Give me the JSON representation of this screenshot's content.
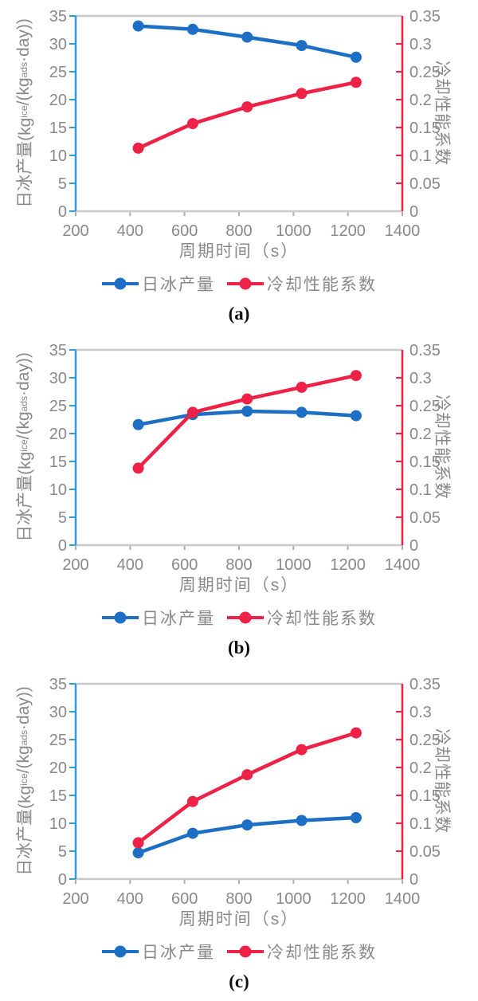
{
  "colors": {
    "series_blue": "#1c6fc4",
    "series_red": "#ee2147",
    "axis_left_spine": "#2f9cd9",
    "axis_right_spine": "#ee2147",
    "spine_gray": "#c9c9c9",
    "bottom_tick": "#b3aca9",
    "text_gray": "#898989"
  },
  "chart_data": [
    {
      "type": "line",
      "caption": "(a)",
      "x": [
        430,
        630,
        830,
        1030,
        1230
      ],
      "series": [
        {
          "key": "blue",
          "name": "日冰产量",
          "axis": "left",
          "color": "#1c6fc4",
          "values": [
            33.2,
            32.6,
            31.2,
            29.7,
            27.6
          ]
        },
        {
          "key": "red",
          "name": "冷却性能系数",
          "axis": "right",
          "color": "#ee2147",
          "values": [
            0.113,
            0.157,
            0.187,
            0.211,
            0.231
          ]
        }
      ],
      "axes": {
        "x": {
          "min": 200,
          "max": 1400,
          "step": 200,
          "title": "周期时间（s）"
        },
        "left": {
          "min": 0,
          "max": 35,
          "step": 5,
          "title_parts": [
            {
              "text": "日冰产量(kg"
            },
            {
              "sub": "ice"
            },
            {
              "text": "/(kg"
            },
            {
              "sub": "ads"
            },
            {
              "text": "·day))"
            }
          ]
        },
        "right": {
          "min": 0,
          "max": 0.35,
          "step": 0.05,
          "title": "冷却性能系数"
        }
      },
      "legend": [
        {
          "label": "日冰产量",
          "color": "#1c6fc4"
        },
        {
          "label": "冷却性能系数",
          "color": "#ee2147"
        }
      ]
    },
    {
      "type": "line",
      "caption": "(b)",
      "x": [
        430,
        630,
        830,
        1030,
        1230
      ],
      "series": [
        {
          "key": "blue",
          "name": "日冰产量",
          "axis": "left",
          "color": "#1c6fc4",
          "values": [
            21.6,
            23.4,
            24.0,
            23.8,
            23.2
          ]
        },
        {
          "key": "red",
          "name": "冷却性能系数",
          "axis": "right",
          "color": "#ee2147",
          "values": [
            0.138,
            0.238,
            0.262,
            0.283,
            0.304
          ]
        }
      ],
      "axes": {
        "x": {
          "min": 200,
          "max": 1400,
          "step": 200,
          "title": "周期时间（s）"
        },
        "left": {
          "min": 0,
          "max": 35,
          "step": 5,
          "title_parts": [
            {
              "text": "日冰产量(kg"
            },
            {
              "sub": "ice"
            },
            {
              "text": "/(kg"
            },
            {
              "sub": "ads"
            },
            {
              "text": "·day))"
            }
          ]
        },
        "right": {
          "min": 0,
          "max": 0.35,
          "step": 0.05,
          "title": "冷却性能系数"
        }
      },
      "legend": [
        {
          "label": "日冰产量",
          "color": "#1c6fc4"
        },
        {
          "label": "冷却性能系数",
          "color": "#ee2147"
        }
      ]
    },
    {
      "type": "line",
      "caption": "(c)",
      "x": [
        430,
        630,
        830,
        1030,
        1230
      ],
      "series": [
        {
          "key": "blue",
          "name": "日冰产量",
          "axis": "left",
          "color": "#1c6fc4",
          "values": [
            4.7,
            8.2,
            9.7,
            10.5,
            11.0
          ]
        },
        {
          "key": "red",
          "name": "冷却性能系数",
          "axis": "right",
          "color": "#ee2147",
          "values": [
            0.065,
            0.139,
            0.187,
            0.232,
            0.262
          ]
        }
      ],
      "axes": {
        "x": {
          "min": 200,
          "max": 1400,
          "step": 200,
          "title": "周期时间（s）"
        },
        "left": {
          "min": 0,
          "max": 35,
          "step": 5,
          "title_parts": [
            {
              "text": "日冰产量(kg"
            },
            {
              "sub": "ice"
            },
            {
              "text": "/(kg"
            },
            {
              "sub": "ads"
            },
            {
              "text": "·day))"
            }
          ]
        },
        "right": {
          "min": 0,
          "max": 0.35,
          "step": 0.05,
          "title": "冷却性能系数"
        }
      },
      "legend": [
        {
          "label": "日冰产量",
          "color": "#1c6fc4"
        },
        {
          "label": "冷却性能系数",
          "color": "#ee2147"
        }
      ]
    }
  ]
}
